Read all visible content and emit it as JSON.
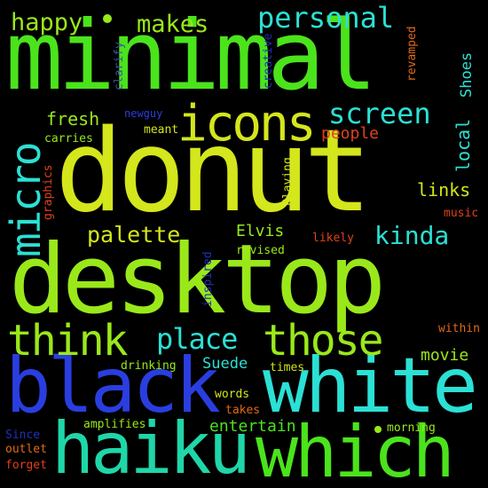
{
  "colors": {
    "background": "#000000",
    "green": "#4be31c",
    "lime": "#9ae81a",
    "yellow": "#d4e61c",
    "cyan": "#2be0d4",
    "teal": "#1fd6a8",
    "blue": "#2a3ee0",
    "darkblue": "#2030b8",
    "red": "#e0401a",
    "orange": "#e06a1a",
    "darkred": "#b81e22",
    "grey": "#3a55a8",
    "pink": "#cc3a4a"
  },
  "words": [
    {
      "key": "minimal",
      "text": "minimal"
    },
    {
      "key": "donut",
      "text": "donut"
    },
    {
      "key": "desktop",
      "text": "desktop"
    },
    {
      "key": "black",
      "text": "black"
    },
    {
      "key": "white",
      "text": "white"
    },
    {
      "key": "haiku",
      "text": "haiku"
    },
    {
      "key": "which",
      "text": "which"
    },
    {
      "key": "icons",
      "text": "icons"
    },
    {
      "key": "think",
      "text": "think"
    },
    {
      "key": "those",
      "text": "those"
    },
    {
      "key": "place",
      "text": "place"
    },
    {
      "key": "micro",
      "text": "micro"
    },
    {
      "key": "screen",
      "text": "screen"
    },
    {
      "key": "personal",
      "text": "personal"
    },
    {
      "key": "makes",
      "text": "makes"
    },
    {
      "key": "happy",
      "text": "happy"
    },
    {
      "key": "palette",
      "text": "palette"
    },
    {
      "key": "kinda",
      "text": "kinda"
    },
    {
      "key": "fresh",
      "text": "fresh"
    },
    {
      "key": "people",
      "text": "people"
    },
    {
      "key": "local",
      "text": "local"
    },
    {
      "key": "links",
      "text": "links"
    },
    {
      "key": "Elvis",
      "text": "Elvis"
    },
    {
      "key": "Suede",
      "text": "Suede"
    },
    {
      "key": "movie",
      "text": "movie"
    },
    {
      "key": "entertain",
      "text": "entertain"
    },
    {
      "key": "Shoes",
      "text": "Shoes"
    },
    {
      "key": "meant",
      "text": "meant"
    },
    {
      "key": "carries",
      "text": "carries"
    },
    {
      "key": "newguy",
      "text": "newguy"
    },
    {
      "key": "clarify",
      "text": "clarify"
    },
    {
      "key": "creative",
      "text": "creative"
    },
    {
      "key": "revamped",
      "text": "revamped"
    },
    {
      "key": "graphics",
      "text": "graphics"
    },
    {
      "key": "Playing",
      "text": "Playing"
    },
    {
      "key": "music",
      "text": "music"
    },
    {
      "key": "likely",
      "text": "likely"
    },
    {
      "key": "revised",
      "text": "revised"
    },
    {
      "key": "inspired",
      "text": "inspired"
    },
    {
      "key": "within",
      "text": "within"
    },
    {
      "key": "drinking",
      "text": "drinking"
    },
    {
      "key": "times",
      "text": "times"
    },
    {
      "key": "words",
      "text": "words"
    },
    {
      "key": "takes",
      "text": "takes"
    },
    {
      "key": "amplifies",
      "text": "amplifies"
    },
    {
      "key": "morning",
      "text": "morning"
    },
    {
      "key": "Since",
      "text": "Since"
    },
    {
      "key": "outlet",
      "text": "outlet"
    },
    {
      "key": "forget",
      "text": "forget"
    }
  ]
}
